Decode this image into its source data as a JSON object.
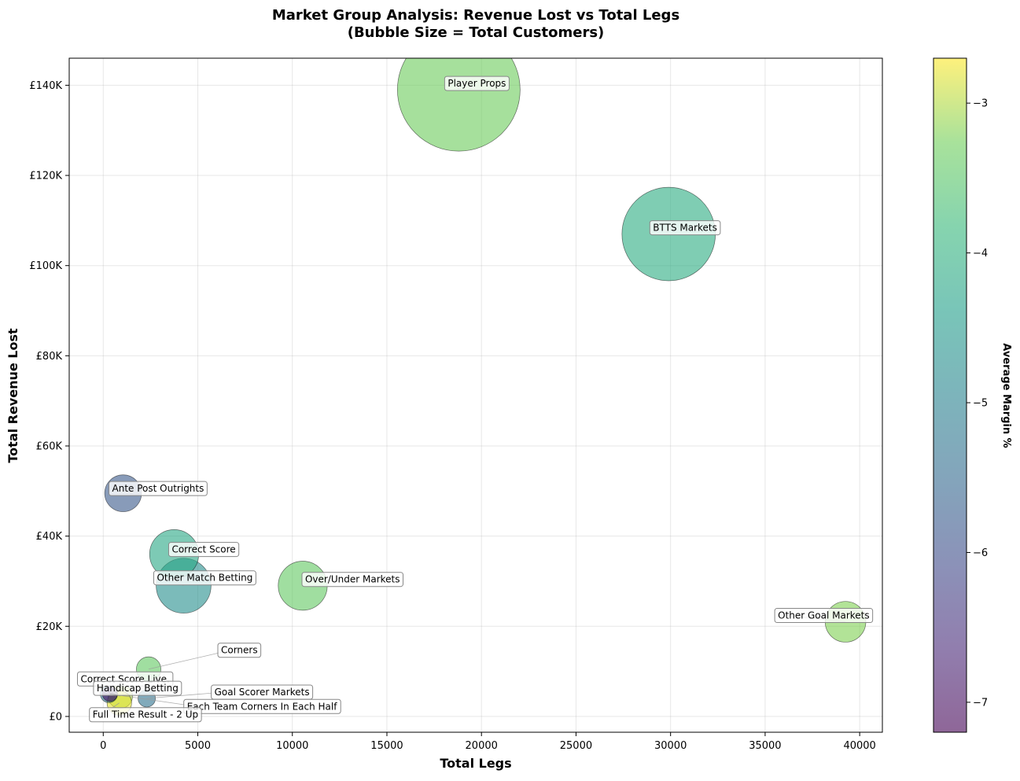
{
  "chart_data": {
    "type": "scatter",
    "title": "Market Group Analysis: Revenue Lost vs Total Legs",
    "subtitle": "(Bubble Size = Total Customers)",
    "xlabel": "Total Legs",
    "ylabel": "Total Revenue Lost",
    "colorbar_label": "Average Margin %",
    "xlim": [
      -1800,
      41200
    ],
    "ylim": [
      -3500,
      146000
    ],
    "xticks": [
      0,
      5000,
      10000,
      15000,
      20000,
      25000,
      30000,
      35000,
      40000
    ],
    "xtick_labels": [
      "0",
      "5000",
      "10000",
      "15000",
      "20000",
      "25000",
      "30000",
      "35000",
      "40000"
    ],
    "yticks": [
      0,
      20000,
      40000,
      60000,
      80000,
      100000,
      120000,
      140000
    ],
    "ytick_labels": [
      "£0",
      "£20K",
      "£40K",
      "£60K",
      "£80K",
      "£100K",
      "£120K",
      "£140K"
    ],
    "colorbar_range": [
      -7.2,
      -2.7
    ],
    "colorbar_ticks": [
      -7,
      -6,
      -5,
      -4,
      -3
    ],
    "colorbar_tick_labels": [
      "−7",
      "−6",
      "−5",
      "−4",
      "−3"
    ],
    "colormap": "viridis",
    "grid": true,
    "points": [
      {
        "label": "Player Props",
        "x": 18800,
        "y": 139000,
        "margin": -3.3,
        "size": 100
      },
      {
        "label": "BTTS Markets",
        "x": 29900,
        "y": 107000,
        "margin": -4.1,
        "size": 58
      },
      {
        "label": "Ante Post Outrights",
        "x": 1050,
        "y": 49500,
        "margin": -5.8,
        "size": 9
      },
      {
        "label": "Correct Score",
        "x": 3750,
        "y": 36000,
        "margin": -4.2,
        "size": 16
      },
      {
        "label": "Other Match Betting",
        "x": 4250,
        "y": 29000,
        "margin": -4.7,
        "size": 20
      },
      {
        "label": "Over/Under Markets",
        "x": 10550,
        "y": 29000,
        "margin": -3.4,
        "size": 16
      },
      {
        "label": "Other Goal Markets",
        "x": 39250,
        "y": 21000,
        "margin": -3.2,
        "size": 11
      },
      {
        "label": "Corners",
        "x": 2400,
        "y": 10500,
        "margin": -3.4,
        "size": 4
      },
      {
        "label": "Correct Score Live.",
        "x": 300,
        "y": 5000,
        "margin": -5.3,
        "size": 2
      },
      {
        "label": "Handicap Betting",
        "x": 900,
        "y": 4500,
        "margin": -3.0,
        "size": 4
      },
      {
        "label": "Goal Scorer Markets",
        "x": 2300,
        "y": 4000,
        "margin": -5.3,
        "size": 2
      },
      {
        "label": "Each Team Corners In Each Half",
        "x": 350,
        "y": 5000,
        "margin": -7.0,
        "size": 1.5
      },
      {
        "label": "Full Time Result - 2 Up",
        "x": 850,
        "y": 3000,
        "margin": -2.8,
        "size": 4
      }
    ]
  }
}
